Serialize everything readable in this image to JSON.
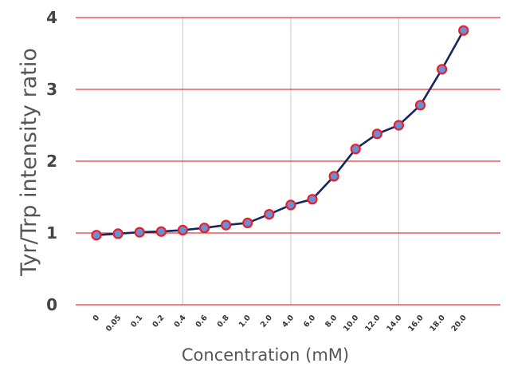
{
  "chart_data": {
    "type": "line",
    "xlabel": "Concentration (mM)",
    "ylabel": "Tyr/Trp intensity ratio",
    "categories": [
      "0",
      "0.05",
      "0.1",
      "0.2",
      "0.4",
      "0.6",
      "0.8",
      "1.0",
      "2.0",
      "4.0",
      "6.0",
      "8.0",
      "10.0",
      "12.0",
      "14.0",
      "16.0",
      "18.0",
      "20.0"
    ],
    "series": [
      {
        "values": [
          0.97,
          0.99,
          1.01,
          1.02,
          1.04,
          1.07,
          1.11,
          1.14,
          1.26,
          1.39,
          1.47,
          1.79,
          2.17,
          2.38,
          2.5,
          2.78,
          3.28,
          3.82
        ]
      }
    ],
    "ylim": [
      0,
      4
    ],
    "yticks": [
      "0",
      "1",
      "2",
      "3",
      "4"
    ],
    "grid": {
      "horizontal": true,
      "vertical_at": [
        "0.4",
        "4.0",
        "14.0"
      ]
    },
    "colors": {
      "line": "#14275e",
      "marker_fill": "#6a8fd4",
      "marker_edge": "#e8202a",
      "h_grid": "#e63a3a",
      "v_grid": "#d0d0d0"
    }
  }
}
